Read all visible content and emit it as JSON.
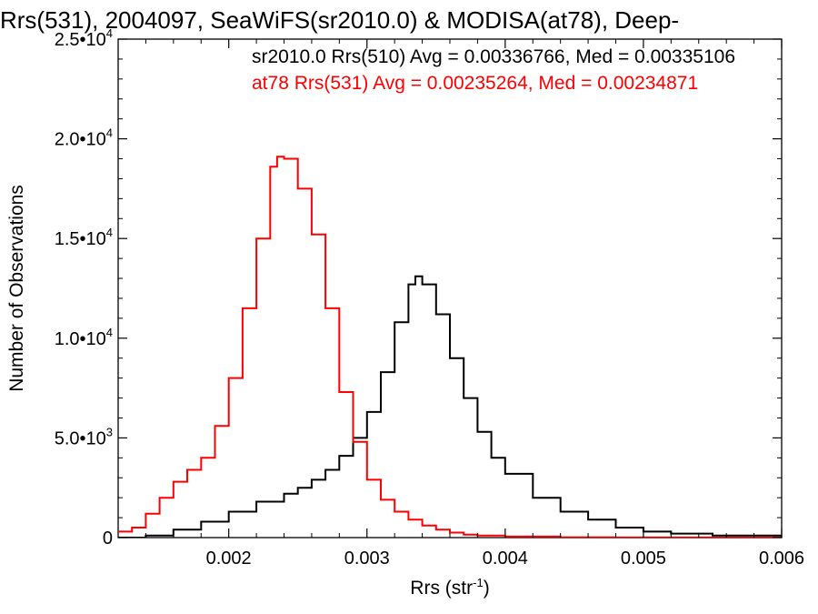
{
  "chart_data": {
    "type": "histogram",
    "title": "Rrs(531), 2004097, SeaWiFS(sr2010.0) & MODISA(at78), Deep-",
    "xlabel": {
      "text": "Rrs (str",
      "sup": "-1",
      "close": ")"
    },
    "ylabel": "Number of Observations",
    "xlim": [
      0.0012,
      0.006
    ],
    "ylim": [
      0,
      25000
    ],
    "grid": false,
    "x_ticks": [
      {
        "value": 0.002,
        "label": "0.002"
      },
      {
        "value": 0.003,
        "label": "0.003"
      },
      {
        "value": 0.004,
        "label": "0.004"
      },
      {
        "value": 0.005,
        "label": "0.005"
      },
      {
        "value": 0.006,
        "label": "0.006"
      }
    ],
    "y_ticks": [
      {
        "value": 0,
        "label": "0",
        "sup": ""
      },
      {
        "value": 5000,
        "label": "5.0•10",
        "sup": "3"
      },
      {
        "value": 10000,
        "label": "1.0•10",
        "sup": "4"
      },
      {
        "value": 15000,
        "label": "1.5•10",
        "sup": "4"
      },
      {
        "value": 20000,
        "label": "2.0•10",
        "sup": "4"
      },
      {
        "value": 25000,
        "label": "2.5•10",
        "sup": "4"
      }
    ],
    "series": [
      {
        "label": "sr2010.0 Rrs(510) Avg = 0.00336766, Med = 0.00335106",
        "color": "#000000",
        "points": [
          [
            0.0012,
            0
          ],
          [
            0.0014,
            100
          ],
          [
            0.0016,
            400
          ],
          [
            0.0018,
            800
          ],
          [
            0.002,
            1300
          ],
          [
            0.0022,
            1800
          ],
          [
            0.0024,
            2200
          ],
          [
            0.0025,
            2500
          ],
          [
            0.0026,
            2900
          ],
          [
            0.0027,
            3400
          ],
          [
            0.0028,
            4100
          ],
          [
            0.0029,
            5000
          ],
          [
            0.003,
            6300
          ],
          [
            0.0031,
            8300
          ],
          [
            0.0032,
            10800
          ],
          [
            0.0033,
            12700
          ],
          [
            0.00335,
            13100
          ],
          [
            0.0034,
            12700
          ],
          [
            0.0035,
            11200
          ],
          [
            0.0036,
            9000
          ],
          [
            0.0037,
            7000
          ],
          [
            0.0038,
            5300
          ],
          [
            0.0039,
            4000
          ],
          [
            0.004,
            3200
          ],
          [
            0.0042,
            2000
          ],
          [
            0.0044,
            1300
          ],
          [
            0.0046,
            900
          ],
          [
            0.0048,
            500
          ],
          [
            0.005,
            300
          ],
          [
            0.0052,
            200
          ],
          [
            0.0055,
            100
          ],
          [
            0.006,
            50
          ]
        ]
      },
      {
        "label": "at78 Rrs(531) Avg = 0.00235264, Med = 0.00234871",
        "color": "#ff0000",
        "points": [
          [
            0.0012,
            300
          ],
          [
            0.0013,
            500
          ],
          [
            0.0014,
            1200
          ],
          [
            0.0015,
            2000
          ],
          [
            0.0016,
            2800
          ],
          [
            0.0017,
            3400
          ],
          [
            0.0018,
            4000
          ],
          [
            0.0019,
            5600
          ],
          [
            0.002,
            8000
          ],
          [
            0.0021,
            11500
          ],
          [
            0.0022,
            15000
          ],
          [
            0.0023,
            18600
          ],
          [
            0.00235,
            19100
          ],
          [
            0.0024,
            19000
          ],
          [
            0.0025,
            17500
          ],
          [
            0.0026,
            15200
          ],
          [
            0.0027,
            11500
          ],
          [
            0.0028,
            7300
          ],
          [
            0.0029,
            4800
          ],
          [
            0.003,
            2900
          ],
          [
            0.0031,
            1900
          ],
          [
            0.0032,
            1300
          ],
          [
            0.0033,
            900
          ],
          [
            0.0034,
            600
          ],
          [
            0.0035,
            400
          ],
          [
            0.0036,
            250
          ],
          [
            0.0037,
            150
          ],
          [
            0.0038,
            100
          ],
          [
            0.004,
            50
          ],
          [
            0.0044,
            20
          ],
          [
            0.0048,
            10
          ],
          [
            0.006,
            0
          ]
        ]
      }
    ]
  }
}
